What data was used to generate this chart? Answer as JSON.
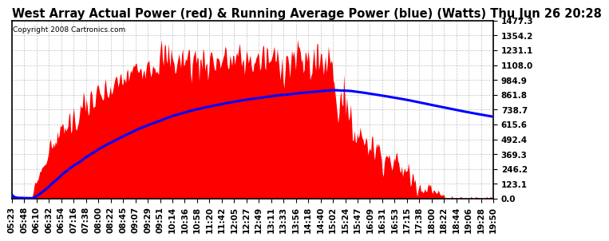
{
  "title": "West Array Actual Power (red) & Running Average Power (blue) (Watts) Thu Jun 26 20:28",
  "copyright": "Copyright 2008 Cartronics.com",
  "y_ticks": [
    0.0,
    123.1,
    246.2,
    369.3,
    492.4,
    615.6,
    738.7,
    861.8,
    984.9,
    1108.0,
    1231.1,
    1354.2,
    1477.3
  ],
  "ymax": 1477.3,
  "ymin": 0.0,
  "x_labels": [
    "05:23",
    "05:48",
    "06:10",
    "06:32",
    "06:54",
    "07:16",
    "07:38",
    "08:00",
    "08:22",
    "08:45",
    "09:07",
    "09:29",
    "09:51",
    "10:14",
    "10:36",
    "10:58",
    "11:20",
    "11:42",
    "12:05",
    "12:27",
    "12:49",
    "13:11",
    "13:33",
    "13:56",
    "14:18",
    "14:40",
    "15:02",
    "15:24",
    "15:47",
    "16:09",
    "16:31",
    "16:53",
    "17:15",
    "17:38",
    "18:00",
    "18:22",
    "18:44",
    "19:06",
    "19:28",
    "19:50"
  ],
  "background_color": "#ffffff",
  "plot_bg_color": "#ffffff",
  "grid_color": "#aaaaaa",
  "fill_color": "#ff0000",
  "line_color": "#0000ff",
  "title_color": "#000000",
  "title_fontsize": 10.5,
  "tick_fontsize": 7.5,
  "copyright_fontsize": 6.5
}
